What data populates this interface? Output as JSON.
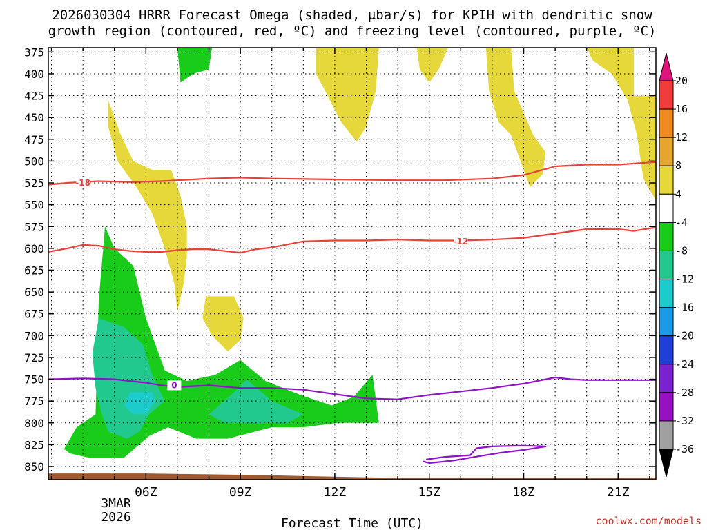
{
  "chart_data": {
    "type": "heatmap",
    "title_line1": "2026030304 HRRR Forecast Omega (shaded, μbar/s) for KPIH with dendritic snow",
    "title_line2": "growth region (contoured, red, ºC) and freezing level (contoured, purple, ºC)",
    "xlabel": "Forecast Time (UTC)",
    "credit": "coolwx.com/models",
    "x_range_hours": [
      2.9,
      22.2
    ],
    "y_range_hPa": [
      370,
      865
    ],
    "y_ticks": [
      375,
      400,
      425,
      450,
      475,
      500,
      525,
      550,
      575,
      600,
      625,
      650,
      675,
      700,
      725,
      750,
      775,
      800,
      825,
      850
    ],
    "x_ticks": [
      {
        "hour": 6,
        "label": "06Z"
      },
      {
        "hour": 9,
        "label": "09Z"
      },
      {
        "hour": 12,
        "label": "12Z"
      },
      {
        "hour": 15,
        "label": "15Z"
      },
      {
        "hour": 18,
        "label": "18Z"
      },
      {
        "hour": 21,
        "label": "21Z"
      }
    ],
    "date_label": [
      "3MAR",
      "2026"
    ],
    "grid": true,
    "colorbar": {
      "labels": [
        "20",
        "16",
        "12",
        "8",
        "4",
        "-4",
        "-8",
        "-12",
        "-16",
        "-20",
        "-24",
        "-28",
        "-32",
        "-36"
      ],
      "colors": [
        "#f23c3c",
        "#f08a22",
        "#e6a52e",
        "#e6d83a",
        "#ffffff",
        "#19cc19",
        "#22c98e",
        "#1ccccc",
        "#1a9ae8",
        "#1e3fd8",
        "#7a22d2",
        "#9810c4",
        "#a0a0a0"
      ],
      "top_arrow_color": "#e0147a",
      "bottom_arrow_color": "#000000"
    },
    "omega_fields": [
      {
        "color": "#e6d83a",
        "name_value": "4 to 8",
        "polygons": [
          [
            [
              4.8,
              430
            ],
            [
              5.2,
              470
            ],
            [
              5.6,
              500
            ],
            [
              6.2,
              510
            ],
            [
              6.8,
              510
            ],
            [
              7.1,
              540
            ],
            [
              7.3,
              575
            ],
            [
              7.3,
              610
            ],
            [
              7.2,
              640
            ],
            [
              7.0,
              672
            ],
            [
              6.9,
              640
            ],
            [
              6.6,
              600
            ],
            [
              6.2,
              560
            ],
            [
              5.7,
              530
            ],
            [
              5.1,
              500
            ],
            [
              4.8,
              460
            ]
          ],
          [
            [
              7.9,
              655
            ],
            [
              8.8,
              655
            ],
            [
              9.1,
              680
            ],
            [
              9.0,
              705
            ],
            [
              8.6,
              718
            ],
            [
              8.1,
              700
            ],
            [
              7.8,
              680
            ]
          ],
          [
            [
              11.4,
              370
            ],
            [
              13.4,
              370
            ],
            [
              13.3,
              420
            ],
            [
              13.0,
              460
            ],
            [
              12.7,
              478
            ],
            [
              12.2,
              455
            ],
            [
              11.7,
              420
            ],
            [
              11.4,
              400
            ]
          ],
          [
            [
              14.6,
              370
            ],
            [
              15.6,
              370
            ],
            [
              15.3,
              395
            ],
            [
              15.0,
              410
            ],
            [
              14.7,
              395
            ]
          ],
          [
            [
              16.8,
              370
            ],
            [
              17.6,
              370
            ],
            [
              17.7,
              420
            ],
            [
              18.3,
              470
            ],
            [
              18.7,
              490
            ],
            [
              18.6,
              515
            ],
            [
              18.2,
              530
            ],
            [
              17.9,
              500
            ],
            [
              17.6,
              470
            ],
            [
              17.2,
              455
            ],
            [
              16.9,
              420
            ]
          ],
          [
            [
              20.0,
              370
            ],
            [
              21.5,
              370
            ],
            [
              21.5,
              425
            ],
            [
              22.2,
              425
            ],
            [
              22.2,
              545
            ],
            [
              21.8,
              520
            ],
            [
              21.6,
              470
            ],
            [
              21.3,
              430
            ],
            [
              20.8,
              400
            ],
            [
              20.2,
              385
            ]
          ]
        ]
      },
      {
        "color": "#19cc19",
        "name_value": "-4 to -8",
        "polygons": [
          [
            [
              7.0,
              370
            ],
            [
              8.1,
              370
            ],
            [
              8.0,
              395
            ],
            [
              7.5,
              400
            ],
            [
              7.1,
              410
            ]
          ],
          [
            [
              3.4,
              830
            ],
            [
              3.8,
              805
            ],
            [
              4.4,
              790
            ],
            [
              4.5,
              660
            ],
            [
              4.7,
              575
            ],
            [
              5.0,
              600
            ],
            [
              5.6,
              620
            ],
            [
              6.0,
              680
            ],
            [
              6.6,
              740
            ],
            [
              7.3,
              752
            ],
            [
              8.2,
              745
            ],
            [
              9.0,
              728
            ],
            [
              9.8,
              752
            ],
            [
              10.9,
              768
            ],
            [
              11.9,
              780
            ],
            [
              12.6,
              770
            ],
            [
              13.2,
              745
            ],
            [
              13.4,
              800
            ],
            [
              13.1,
              800
            ],
            [
              12.1,
              800
            ],
            [
              11.0,
              805
            ],
            [
              10.0,
              805
            ],
            [
              8.6,
              818
            ],
            [
              7.6,
              818
            ],
            [
              6.7,
              805
            ],
            [
              6.1,
              815
            ],
            [
              5.3,
              840
            ],
            [
              4.2,
              840
            ],
            [
              3.6,
              835
            ]
          ]
        ]
      },
      {
        "color": "#22c98e",
        "name_value": "-8 to -12",
        "polygons": [
          [
            [
              4.5,
              680
            ],
            [
              5.3,
              690
            ],
            [
              5.9,
              710
            ],
            [
              6.2,
              745
            ],
            [
              6.6,
              775
            ],
            [
              6.1,
              790
            ],
            [
              5.8,
              810
            ],
            [
              5.4,
              818
            ],
            [
              4.8,
              810
            ],
            [
              4.6,
              790
            ],
            [
              4.4,
              760
            ],
            [
              4.3,
              720
            ]
          ],
          [
            [
              8.0,
              790
            ],
            [
              8.8,
              765
            ],
            [
              9.2,
              750
            ],
            [
              10.0,
              775
            ],
            [
              11.0,
              790
            ],
            [
              10.5,
              800
            ],
            [
              9.5,
              800
            ],
            [
              8.5,
              800
            ]
          ]
        ]
      },
      {
        "color": "#1ccccc",
        "name_value": "-12 to -16",
        "polygons": [
          [
            [
              5.5,
              765
            ],
            [
              6.2,
              765
            ],
            [
              6.3,
              775
            ],
            [
              6.0,
              790
            ],
            [
              5.6,
              790
            ],
            [
              5.3,
              780
            ]
          ]
        ]
      }
    ],
    "terrain": {
      "color": "#a05a32",
      "points": [
        [
          2.9,
          858
        ],
        [
          4.0,
          858
        ],
        [
          6.0,
          858
        ],
        [
          8.0,
          859
        ],
        [
          10.0,
          860
        ],
        [
          11.0,
          861
        ],
        [
          12.5,
          862
        ],
        [
          14.0,
          863
        ],
        [
          16.0,
          863
        ],
        [
          19.0,
          863
        ],
        [
          22.2,
          863
        ]
      ]
    },
    "temperature_contours": [
      {
        "level": "-18",
        "color": "#e8413a",
        "label_at": [
          4.0,
          525
        ],
        "points": [
          [
            2.9,
            527
          ],
          [
            3.5,
            525
          ],
          [
            4.5,
            523
          ],
          [
            5.5,
            524
          ],
          [
            6.5,
            523
          ],
          [
            8.0,
            520
          ],
          [
            9.0,
            519
          ],
          [
            10.0,
            520
          ],
          [
            12.0,
            521
          ],
          [
            14.0,
            522
          ],
          [
            15.5,
            522
          ],
          [
            17.0,
            520
          ],
          [
            18.0,
            516
          ],
          [
            18.6,
            510
          ],
          [
            19.0,
            506
          ],
          [
            20.0,
            504
          ],
          [
            21.0,
            504
          ],
          [
            22.2,
            501
          ]
        ]
      },
      {
        "level": "-12",
        "color": "#e8413a",
        "label_at": [
          16.0,
          592
        ],
        "points": [
          [
            2.9,
            604
          ],
          [
            3.5,
            600
          ],
          [
            4.0,
            596
          ],
          [
            4.5,
            597
          ],
          [
            5.0,
            601
          ],
          [
            5.5,
            603
          ],
          [
            6.0,
            604
          ],
          [
            6.5,
            604
          ],
          [
            7.0,
            602
          ],
          [
            7.5,
            601
          ],
          [
            8.0,
            601
          ],
          [
            8.5,
            603
          ],
          [
            9.0,
            605
          ],
          [
            9.5,
            601
          ],
          [
            10.0,
            599
          ],
          [
            11.0,
            592
          ],
          [
            12.0,
            591
          ],
          [
            13.0,
            591
          ],
          [
            14.0,
            590
          ],
          [
            15.0,
            591
          ],
          [
            16.0,
            591
          ],
          [
            17.0,
            590
          ],
          [
            18.0,
            588
          ],
          [
            19.0,
            583
          ],
          [
            20.0,
            578
          ],
          [
            21.0,
            578
          ],
          [
            21.5,
            580
          ],
          [
            22.2,
            576
          ]
        ]
      }
    ],
    "freezing_contours": [
      {
        "level": "0",
        "color": "#8e12c7",
        "label_at": [
          6.9,
          757
        ],
        "points": [
          [
            2.9,
            750
          ],
          [
            4.0,
            749
          ],
          [
            5.0,
            750
          ],
          [
            6.0,
            754
          ],
          [
            6.5,
            757
          ],
          [
            7.0,
            759
          ],
          [
            8.0,
            757
          ],
          [
            9.0,
            760
          ],
          [
            10.0,
            760
          ],
          [
            11.0,
            762
          ],
          [
            12.0,
            767
          ],
          [
            13.0,
            772
          ],
          [
            14.0,
            773
          ],
          [
            15.0,
            768
          ],
          [
            16.0,
            764
          ],
          [
            17.0,
            760
          ],
          [
            18.0,
            755
          ],
          [
            19.0,
            748
          ],
          [
            19.5,
            750
          ],
          [
            20.0,
            751
          ],
          [
            21.0,
            751
          ],
          [
            22.2,
            751
          ]
        ]
      },
      {
        "level": "",
        "color": "#8e12c7",
        "label_at": null,
        "points": [
          [
            14.9,
            842
          ],
          [
            15.5,
            839
          ],
          [
            16.3,
            837
          ],
          [
            16.5,
            829
          ],
          [
            17.0,
            827
          ],
          [
            18.0,
            826
          ],
          [
            18.7,
            827
          ],
          [
            18.0,
            831
          ],
          [
            17.3,
            834
          ],
          [
            16.6,
            838
          ],
          [
            15.8,
            843
          ],
          [
            15.0,
            846
          ],
          [
            14.8,
            844
          ]
        ]
      }
    ]
  }
}
